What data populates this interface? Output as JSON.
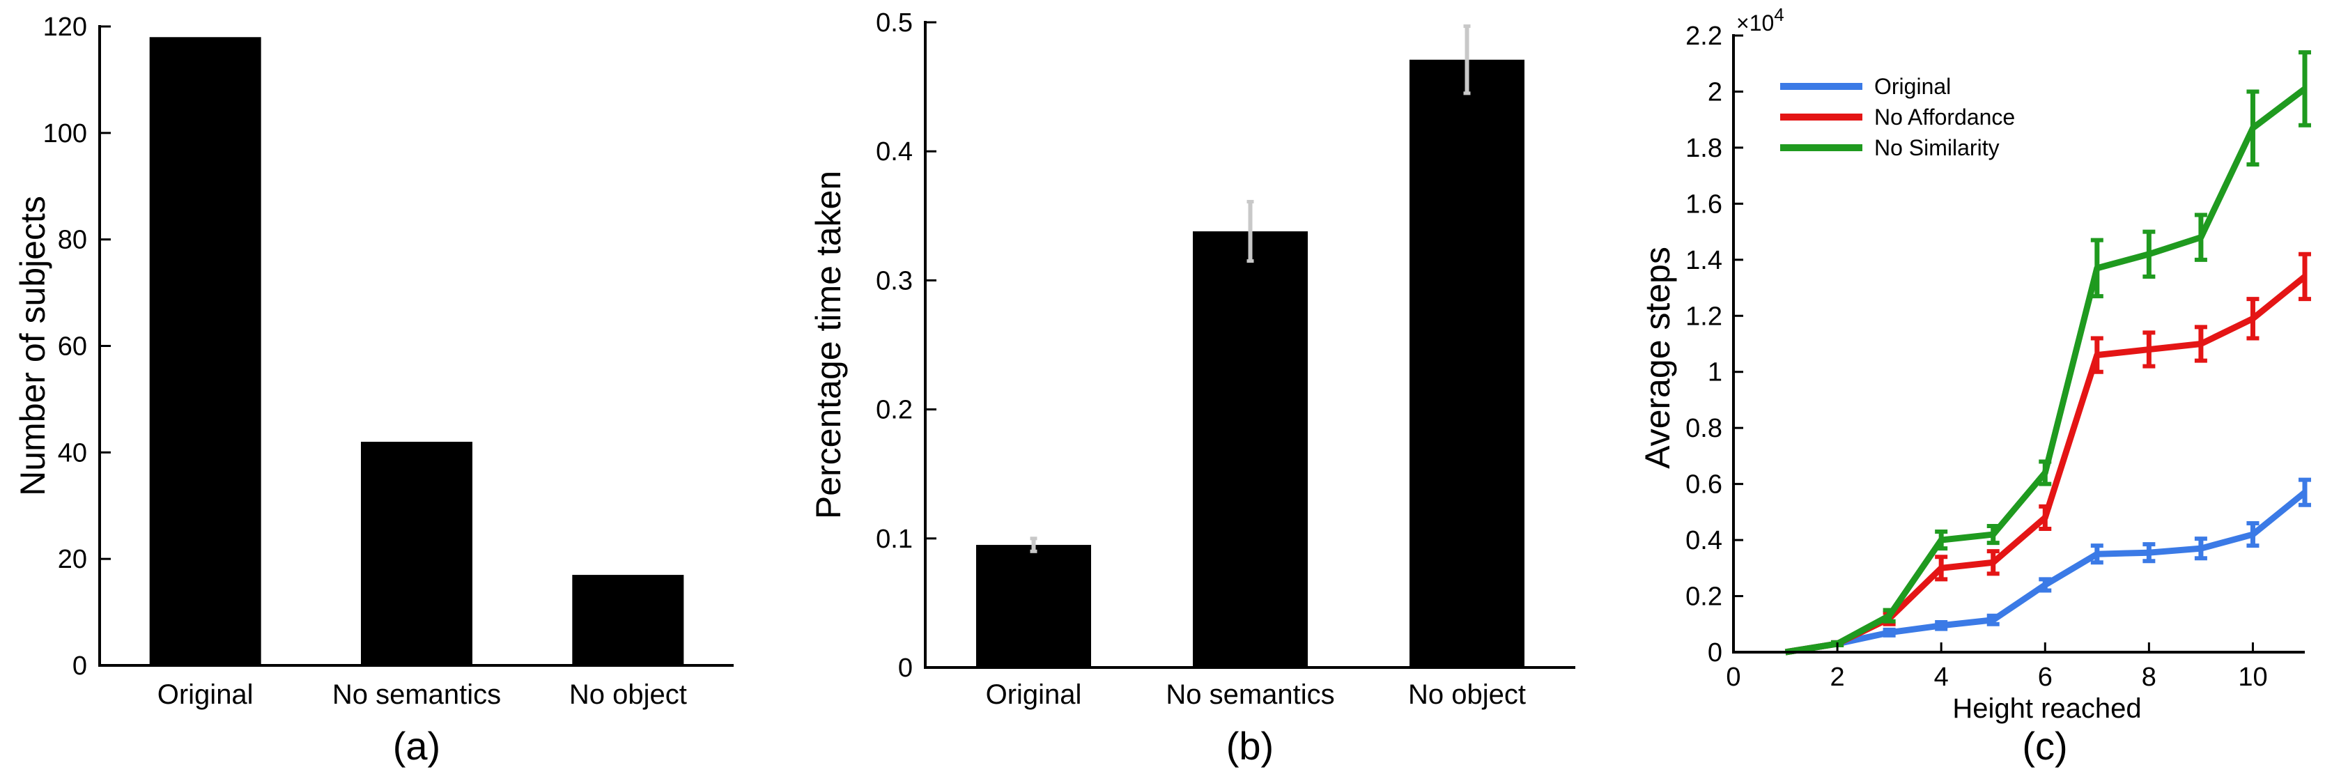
{
  "chart_data": [
    {
      "type": "bar",
      "panel_label": "(a)",
      "categories": [
        "Original",
        "No semantics",
        "No object"
      ],
      "values": [
        118,
        42,
        17
      ],
      "ylabel": "Number of subjects",
      "xlabel": "",
      "ylim": [
        0,
        120
      ],
      "yticks": [
        0,
        20,
        40,
        60,
        80,
        100,
        120
      ],
      "bar_color": "#000000"
    },
    {
      "type": "bar",
      "panel_label": "(b)",
      "categories": [
        "Original",
        "No semantics",
        "No object"
      ],
      "values": [
        0.095,
        0.338,
        0.471
      ],
      "errors": [
        0.005,
        0.023,
        0.026
      ],
      "ylabel": "Percentage time taken",
      "xlabel": "",
      "ylim": [
        0,
        0.5
      ],
      "yticks": [
        0,
        0.1,
        0.2,
        0.3,
        0.4,
        0.5
      ],
      "bar_color": "#000000",
      "error_color": "#c8c8c8"
    },
    {
      "type": "line",
      "panel_label": "(c)",
      "xlabel": "Height reached",
      "ylabel": "Average steps",
      "y_multiplier_label": "×10",
      "y_multiplier_exponent": "4",
      "xlim": [
        0,
        11
      ],
      "ylim": [
        0,
        2.2
      ],
      "xticks": [
        0,
        2,
        4,
        6,
        8,
        10
      ],
      "yticks": [
        0,
        0.2,
        0.4,
        0.6,
        0.8,
        1,
        1.2,
        1.4,
        1.6,
        1.8,
        2,
        2.2
      ],
      "legend_position": "top-left",
      "x": [
        1,
        2,
        3,
        4,
        5,
        6,
        7,
        8,
        9,
        10,
        11
      ],
      "series": [
        {
          "name": "Original",
          "color": "#3b7ae6",
          "values": [
            0,
            0.03,
            0.07,
            0.095,
            0.115,
            0.24,
            0.35,
            0.355,
            0.37,
            0.42,
            0.57
          ],
          "errors": [
            0,
            0.005,
            0.01,
            0.012,
            0.015,
            0.02,
            0.03,
            0.03,
            0.035,
            0.04,
            0.045
          ]
        },
        {
          "name": "No Affordance",
          "color": "#e41515",
          "values": [
            0,
            0.03,
            0.12,
            0.3,
            0.32,
            0.48,
            1.06,
            1.08,
            1.1,
            1.19,
            1.34
          ],
          "errors": [
            0,
            0.005,
            0.02,
            0.04,
            0.04,
            0.04,
            0.06,
            0.06,
            0.06,
            0.07,
            0.08
          ]
        },
        {
          "name": "No Similarity",
          "color": "#1f9a1f",
          "values": [
            0,
            0.03,
            0.13,
            0.4,
            0.42,
            0.64,
            1.37,
            1.42,
            1.48,
            1.87,
            2.01
          ],
          "errors": [
            0,
            0.005,
            0.02,
            0.03,
            0.03,
            0.04,
            0.1,
            0.08,
            0.08,
            0.13,
            0.13
          ]
        }
      ]
    }
  ]
}
